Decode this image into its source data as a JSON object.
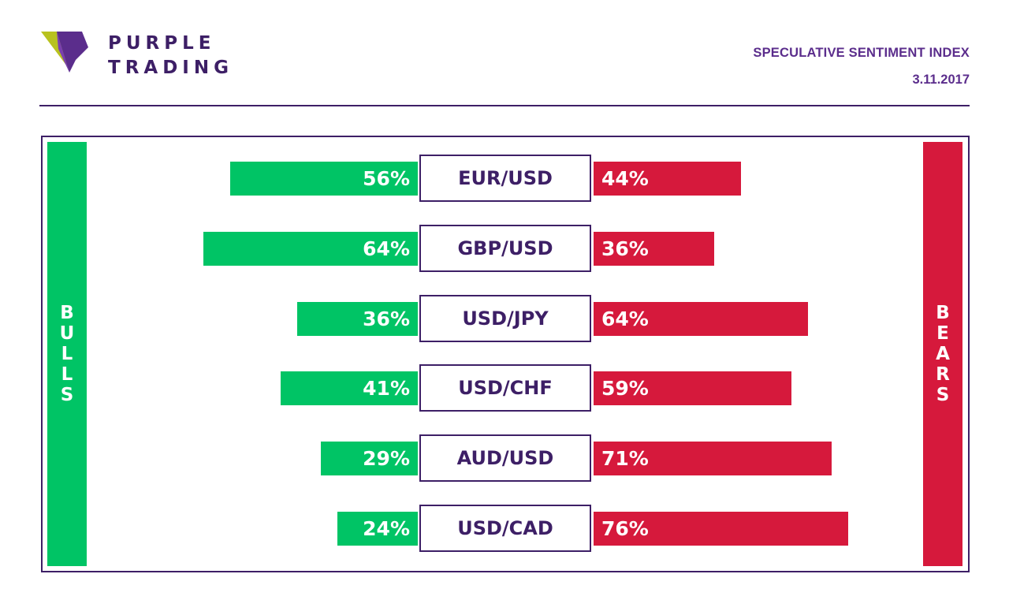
{
  "brand": {
    "line1": "PURPLE",
    "line2": "TRADING"
  },
  "header": {
    "title": "SPECULATIVE SENTIMENT INDEX",
    "date": "3.11.2017"
  },
  "colors": {
    "bulls": "#00c465",
    "bears": "#d6193c",
    "purple": "#3d1f66"
  },
  "chart_data": {
    "type": "bar",
    "title": "SPECULATIVE SENTIMENT INDEX",
    "categories": [
      "EUR/USD",
      "GBP/USD",
      "USD/JPY",
      "USD/CHF",
      "AUD/USD",
      "USD/CAD"
    ],
    "series": [
      {
        "name": "BULLS",
        "values": [
          56,
          64,
          36,
          41,
          29,
          24
        ]
      },
      {
        "name": "BEARS",
        "values": [
          44,
          36,
          64,
          59,
          71,
          76
        ]
      }
    ],
    "unit": "%",
    "ylim": [
      0,
      100
    ],
    "legend_left": "BULLS",
    "legend_right": "BEARS"
  }
}
